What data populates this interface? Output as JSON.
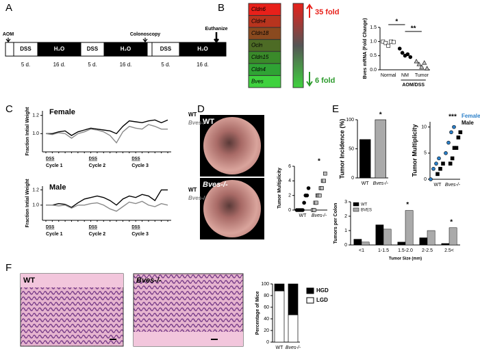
{
  "panel_labels": [
    "A",
    "B",
    "C",
    "D",
    "E",
    "F"
  ],
  "timeline": {
    "events": [
      "AOM",
      "Colonoscopy",
      "Euthanize"
    ],
    "segments": [
      {
        "text": "DSS",
        "duration": "5 d."
      },
      {
        "text": "H₂O",
        "duration": "16 d."
      },
      {
        "text": "DSS",
        "duration": "5 d."
      },
      {
        "text": "H₂O",
        "duration": "16 d."
      },
      {
        "text": "DSS",
        "duration": "5 d."
      },
      {
        "text": "H₂O",
        "duration": "16 d."
      }
    ]
  },
  "heatmap": {
    "genes": [
      "Cldn6",
      "Cldn4",
      "Cldn18",
      "Ocln",
      "Cldn15",
      "Cldn4",
      "Bves"
    ],
    "colors": [
      "#e8201a",
      "#b8341e",
      "#8a4a1f",
      "#4d6b25",
      "#3a8a2a",
      "#2fa334",
      "#3fd23e"
    ],
    "high": "35 fold",
    "low": "6 fold"
  },
  "images": {
    "D": [
      "WT",
      "Bves-/-"
    ],
    "F": [
      "WT",
      "Bves-/-"
    ]
  },
  "chart_data": [
    {
      "type": "dot",
      "ylabel": "Bves mRNA (Fold Change)",
      "categories": [
        "Normal",
        "NM",
        "Tumor"
      ],
      "group_label": "AOM/DSS",
      "annotations": [
        "*",
        "**"
      ],
      "series": [
        {
          "color": "#ffffff",
          "marker": "square",
          "values": [
            [
              1.0,
              0.95,
              0.85,
              1.0,
              0.98
            ],
            [],
            []
          ]
        },
        {
          "color": "#000000",
          "marker": "circle",
          "values": [
            [],
            [
              0.75,
              0.6,
              0.5,
              0.55,
              0.45
            ],
            []
          ]
        },
        {
          "color": "#bbbbbb",
          "marker": "triangle",
          "values": [
            [],
            [],
            [
              0.3,
              0.2,
              0.1,
              0.25,
              0.05
            ]
          ]
        }
      ],
      "ylim": [
        0,
        1.5
      ],
      "yticks": [
        {
          "value": 0,
          "label": "0.0"
        },
        {
          "value": 0.5,
          "label": "0.5"
        },
        {
          "value": 1,
          "label": "1.0"
        },
        {
          "value": 1.5,
          "label": "1.5"
        }
      ]
    },
    {
      "type": "line",
      "title": "Female",
      "ylabel": "Fraction Intial Weight",
      "periods": [
        "DSS",
        "DSS",
        "DSS"
      ],
      "cycles": [
        "Cycle 1",
        "Cycle 2",
        "Cycle 3"
      ],
      "series": [
        {
          "name": "WT",
          "color": "#000000",
          "values": [
            1.0,
            1.0,
            1.02,
            1.03,
            0.98,
            1.02,
            1.04,
            1.06,
            1.05,
            1.04,
            1.03,
            1.0,
            1.08,
            1.14,
            1.13,
            1.12,
            1.14,
            1.15,
            1.12,
            1.15
          ]
        },
        {
          "name": "Bves-/-",
          "color": "#888888",
          "values": [
            1.0,
            0.99,
            1.01,
            1.0,
            0.95,
            1.0,
            1.02,
            1.05,
            1.04,
            1.02,
            0.98,
            0.9,
            1.02,
            1.08,
            1.06,
            1.05,
            1.1,
            1.08,
            1.05,
            1.05
          ]
        }
      ],
      "ylim": [
        0.8,
        1.25
      ],
      "yticks": [
        {
          "value": 1,
          "label": "1.0"
        },
        {
          "value": 1.2,
          "label": "1.2"
        }
      ]
    },
    {
      "type": "line",
      "title": "Male",
      "ylabel": "Fraction Intial Weight",
      "periods": [
        "DSS",
        "DSS",
        "DSS"
      ],
      "cycles": [
        "Cycle 1",
        "Cycle 2",
        "Cycle 3"
      ],
      "series": [
        {
          "name": "WT",
          "color": "#000000",
          "values": [
            1.0,
            1.0,
            1.02,
            1.01,
            0.97,
            1.03,
            1.08,
            1.1,
            1.12,
            1.1,
            1.06,
            1.0,
            1.08,
            1.12,
            1.1,
            1.14,
            1.12,
            1.06,
            1.2,
            1.2
          ]
        },
        {
          "name": "Bves-/-",
          "color": "#888888",
          "values": [
            1.0,
            1.0,
            0.99,
            1.0,
            0.96,
            1.0,
            1.0,
            1.02,
            1.03,
            1.0,
            0.95,
            0.92,
            0.98,
            1.04,
            1.02,
            1.05,
            1.0,
            0.98,
            1.02,
            1.0
          ]
        }
      ],
      "ylim": [
        0.8,
        1.25
      ],
      "yticks": [
        {
          "value": 1,
          "label": "1.0"
        },
        {
          "value": 1.2,
          "label": "1.2"
        }
      ]
    },
    {
      "type": "dot",
      "ylabel": "Tumor Multiplicity",
      "categories": [
        "WT",
        "Bves-/-"
      ],
      "annotations": [
        "*"
      ],
      "series": [
        {
          "color": "#000000",
          "marker": "circle",
          "values": [
            [
              0,
              0,
              0,
              0,
              0,
              1,
              2,
              2,
              3
            ],
            []
          ]
        },
        {
          "color": "#bbbbbb",
          "marker": "square",
          "values": [
            [],
            [
              0,
              0,
              1,
              1,
              2,
              2,
              2,
              3,
              3,
              4,
              4,
              5
            ]
          ]
        }
      ],
      "ylim": [
        0,
        6
      ],
      "yticks": [
        0,
        2,
        4,
        6
      ]
    },
    {
      "type": "bar",
      "ylabel": "Tumor Incidence (%)",
      "categories": [
        "WT",
        "Bves-/-"
      ],
      "values": [
        66,
        100
      ],
      "colors": [
        "#000000",
        "#aaaaaa"
      ],
      "annotations": [
        "*"
      ],
      "ylim": [
        0,
        100
      ],
      "yticks": [
        0,
        50,
        100
      ]
    },
    {
      "type": "dot",
      "ylabel": "Tumor Multiplicity",
      "categories": [
        "WT",
        "Bves-/-"
      ],
      "annotations": [
        "***"
      ],
      "series": [
        {
          "name": "Female",
          "color": "#2a7fc9",
          "marker": "circle",
          "values": [
            [
              0,
              2,
              3,
              4
            ],
            [
              5,
              7,
              9,
              10
            ]
          ]
        },
        {
          "name": "Male",
          "color": "#000000",
          "marker": "square",
          "values": [
            [
              1,
              2,
              3
            ],
            [
              3,
              4,
              6,
              6,
              8,
              9
            ]
          ]
        }
      ],
      "ylim": [
        0,
        11
      ],
      "yticks": [
        0,
        5,
        10
      ]
    },
    {
      "type": "grouped_bar",
      "ylabel": "Tumors per Colon",
      "xlabel": "Tumor Size (mm)",
      "categories": [
        "<1",
        "1-1.5",
        "1.5-2.0",
        "2-2.5",
        "2.5<"
      ],
      "annotations": [
        null,
        null,
        "*",
        null,
        "*"
      ],
      "series": [
        {
          "name": "WT",
          "color": "#000000",
          "values": [
            0.4,
            1.4,
            0.2,
            0.5,
            0.1
          ]
        },
        {
          "name": "BVES",
          "color": "#aaaaaa",
          "values": [
            0.2,
            1.1,
            2.4,
            1.0,
            1.2
          ]
        }
      ],
      "ylim": [
        0,
        3
      ],
      "yticks": [
        0,
        1,
        2,
        3
      ]
    },
    {
      "type": "stacked_bar",
      "ylabel": "Percentage of Mice",
      "categories": [
        "WT",
        "Bves-/-"
      ],
      "series": [
        {
          "name": "LGD",
          "color": "#ffffff",
          "values": [
            88,
            47
          ]
        },
        {
          "name": "HGD",
          "color": "#000000",
          "values": [
            12,
            53
          ]
        }
      ],
      "ylim": [
        0,
        100
      ],
      "yticks": [
        0,
        20,
        40,
        60,
        80,
        100
      ]
    }
  ]
}
